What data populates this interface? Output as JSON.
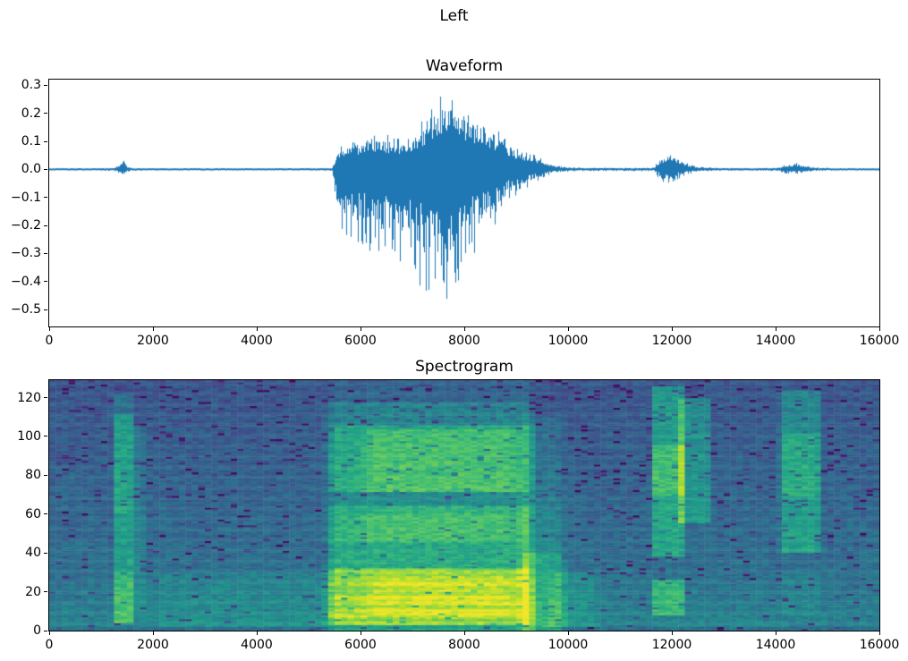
{
  "figure": {
    "suptitle": "Left",
    "background_color": "#ffffff",
    "text_color": "#000000"
  },
  "chart_data": [
    {
      "type": "line",
      "title": "Waveform",
      "xlabel": "",
      "ylabel": "",
      "xlim": [
        0,
        16000
      ],
      "ylim": [
        -0.56,
        0.32
      ],
      "x_ticks": [
        0,
        2000,
        4000,
        6000,
        8000,
        10000,
        12000,
        14000,
        16000
      ],
      "x_tick_labels": [
        "0",
        "2000",
        "4000",
        "6000",
        "8000",
        "10000",
        "12000",
        "14000",
        "16000"
      ],
      "y_ticks": [
        0.3,
        0.2,
        0.1,
        0.0,
        -0.1,
        -0.2,
        -0.3,
        -0.4,
        -0.5
      ],
      "y_tick_labels": [
        "0.3",
        "0.2",
        "0.1",
        "0.0",
        "−0.1",
        "−0.2",
        "−0.3",
        "−0.4",
        "−0.5"
      ],
      "grid": false,
      "legend": null,
      "line_color": "#1f77b4",
      "series_name": "audio amplitude vs sample index",
      "envelope_points": [
        [
          0,
          0.004,
          -0.004
        ],
        [
          1250,
          0.005,
          -0.005
        ],
        [
          1350,
          0.018,
          -0.014
        ],
        [
          1420,
          0.042,
          -0.034
        ],
        [
          1500,
          0.012,
          -0.01
        ],
        [
          1600,
          0.005,
          -0.005
        ],
        [
          2500,
          0.004,
          -0.004
        ],
        [
          4000,
          0.004,
          -0.004
        ],
        [
          5450,
          0.005,
          -0.005
        ],
        [
          5600,
          0.09,
          -0.2
        ],
        [
          5800,
          0.115,
          -0.26
        ],
        [
          6100,
          0.12,
          -0.28
        ],
        [
          6400,
          0.13,
          -0.32
        ],
        [
          6700,
          0.12,
          -0.33
        ],
        [
          7000,
          0.13,
          -0.35
        ],
        [
          7250,
          0.19,
          -0.46
        ],
        [
          7500,
          0.26,
          -0.52
        ],
        [
          7700,
          0.27,
          -0.5
        ],
        [
          7900,
          0.23,
          -0.44
        ],
        [
          8100,
          0.21,
          -0.34
        ],
        [
          8350,
          0.19,
          -0.27
        ],
        [
          8600,
          0.15,
          -0.2
        ],
        [
          8850,
          0.1,
          -0.125
        ],
        [
          9100,
          0.065,
          -0.085
        ],
        [
          9350,
          0.055,
          -0.055
        ],
        [
          9600,
          0.025,
          -0.025
        ],
        [
          9800,
          0.012,
          -0.012
        ],
        [
          10100,
          0.007,
          -0.007
        ],
        [
          11000,
          0.006,
          -0.006
        ],
        [
          11650,
          0.007,
          -0.007
        ],
        [
          11800,
          0.045,
          -0.045
        ],
        [
          11950,
          0.07,
          -0.058
        ],
        [
          12100,
          0.045,
          -0.038
        ],
        [
          12300,
          0.022,
          -0.018
        ],
        [
          12500,
          0.01,
          -0.009
        ],
        [
          12800,
          0.006,
          -0.006
        ],
        [
          13500,
          0.005,
          -0.005
        ],
        [
          14050,
          0.006,
          -0.006
        ],
        [
          14200,
          0.02,
          -0.016
        ],
        [
          14400,
          0.024,
          -0.018
        ],
        [
          14600,
          0.013,
          -0.01
        ],
        [
          14800,
          0.007,
          -0.006
        ],
        [
          15200,
          0.004,
          -0.004
        ],
        [
          16000,
          0.004,
          -0.004
        ]
      ]
    },
    {
      "type": "heatmap",
      "title": "Spectrogram",
      "xlabel": "",
      "ylabel": "",
      "xlim": [
        0,
        16000
      ],
      "ylim": [
        0,
        129
      ],
      "x_ticks": [
        0,
        2000,
        4000,
        6000,
        8000,
        10000,
        12000,
        14000,
        16000
      ],
      "x_tick_labels": [
        "0",
        "2000",
        "4000",
        "6000",
        "8000",
        "10000",
        "12000",
        "14000",
        "16000"
      ],
      "y_ticks": [
        0,
        20,
        40,
        60,
        80,
        100,
        120
      ],
      "y_tick_labels": [
        "0",
        "20",
        "40",
        "60",
        "80",
        "100",
        "120"
      ],
      "grid": false,
      "legend": null,
      "colormap": {
        "name": "viridis",
        "stops": [
          [
            0.0,
            "#440154"
          ],
          [
            0.1,
            "#482475"
          ],
          [
            0.2,
            "#414487"
          ],
          [
            0.3,
            "#355f8d"
          ],
          [
            0.4,
            "#2a788e"
          ],
          [
            0.5,
            "#21918c"
          ],
          [
            0.6,
            "#22a884"
          ],
          [
            0.7,
            "#44bf70"
          ],
          [
            0.8,
            "#7ad151"
          ],
          [
            0.9,
            "#bddf26"
          ],
          [
            1.0,
            "#fde725"
          ]
        ]
      },
      "grid_cells": {
        "cols": 128,
        "rows": 128
      },
      "background": {
        "base": 0.4,
        "freq_slope": 0.14,
        "low_freq_boost": 0.05,
        "bottom_row_dip": 0.08,
        "noise": 0.13,
        "speckle_base": 0.03,
        "speckle_freq_scale": 0.05,
        "speckle_depth": [
          0.1,
          0.25
        ]
      },
      "events": [
        {
          "name": "click-1400",
          "t0": 1280,
          "t1": 1560,
          "fade": 70,
          "bands": [
            [
              4,
              30,
              0.3
            ],
            [
              30,
              60,
              0.2
            ],
            [
              60,
              112,
              0.26
            ],
            [
              112,
              122,
              0.1
            ]
          ]
        },
        {
          "name": "click-1700",
          "t0": 1620,
          "t1": 1790,
          "fade": 60,
          "bands": [
            [
              10,
              105,
              0.1
            ]
          ]
        },
        {
          "name": "ambient-low",
          "t0": 2200,
          "t1": 5400,
          "fade": 500,
          "bands": [
            [
              2,
              30,
              0.06
            ]
          ]
        },
        {
          "name": "main-burst",
          "t0": 5500,
          "t1": 9200,
          "fade": 220,
          "banded": true,
          "bands": [
            [
              0,
              3,
              0.16
            ],
            [
              3,
              32,
              0.42
            ],
            [
              32,
              45,
              0.25
            ],
            [
              45,
              64,
              0.3
            ],
            [
              64,
              72,
              0.16
            ],
            [
              72,
              106,
              0.3
            ],
            [
              106,
              118,
              0.16
            ],
            [
              118,
              129,
              0.05
            ]
          ]
        },
        {
          "name": "burst-core",
          "t0": 6300,
          "t1": 8800,
          "fade": 420,
          "bands": [
            [
              8,
              30,
              0.1
            ],
            [
              46,
              60,
              0.06
            ],
            [
              72,
              104,
              0.1
            ]
          ]
        },
        {
          "name": "burst-tail-1",
          "t0": 9200,
          "t1": 9800,
          "fade": 200,
          "bands": [
            [
              0,
              40,
              0.22
            ],
            [
              40,
              70,
              0.1
            ],
            [
              70,
              110,
              0.07
            ]
          ]
        },
        {
          "name": "burst-tail-2",
          "t0": 9800,
          "t1": 10400,
          "fade": 260,
          "bands": [
            [
              2,
              30,
              0.1
            ]
          ]
        },
        {
          "name": "event-12000",
          "t0": 11680,
          "t1": 12180,
          "fade": 110,
          "bands": [
            [
              8,
              26,
              0.26
            ],
            [
              38,
              70,
              0.25
            ],
            [
              70,
              96,
              0.38
            ],
            [
              96,
              126,
              0.25
            ]
          ]
        },
        {
          "name": "event-12000-tail",
          "t0": 12180,
          "t1": 12680,
          "fade": 130,
          "bands": [
            [
              55,
              120,
              0.2
            ]
          ]
        },
        {
          "name": "event-14400",
          "t0": 14150,
          "t1": 14800,
          "fade": 110,
          "bands": [
            [
              8,
              30,
              0.05
            ],
            [
              40,
              70,
              0.22
            ],
            [
              70,
              102,
              0.3
            ],
            [
              102,
              124,
              0.18
            ]
          ]
        }
      ]
    }
  ]
}
